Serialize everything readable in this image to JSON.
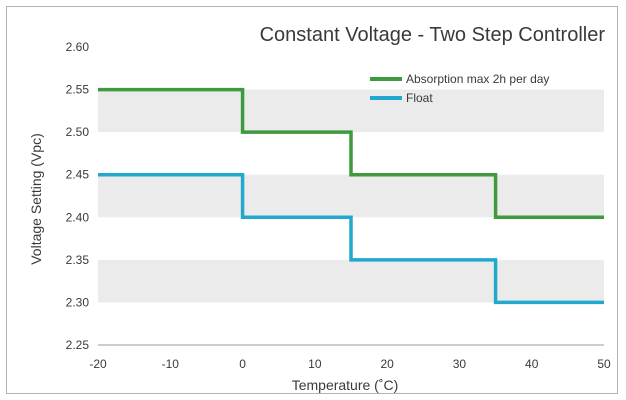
{
  "chart_data": {
    "type": "line",
    "title": "Constant Voltage - Two Step Controller",
    "xlabel": "Temperature (˚C)",
    "ylabel": "Voltage Setting (Vpc)",
    "xlim": [
      -20,
      50
    ],
    "ylim": [
      2.25,
      2.6
    ],
    "x_ticks": [
      -20,
      -10,
      0,
      10,
      20,
      30,
      40,
      50
    ],
    "y_ticks": [
      "2.25",
      "2.30",
      "2.35",
      "2.40",
      "2.45",
      "2.50",
      "2.55",
      "2.60"
    ],
    "grid": "alternating horizontal bands",
    "legend_position": "top-right",
    "series": [
      {
        "name": "Absorption max 2h per day",
        "color": "#3d9a3f",
        "points": [
          [
            -20,
            2.55
          ],
          [
            0,
            2.55
          ],
          [
            0,
            2.5
          ],
          [
            15,
            2.5
          ],
          [
            15,
            2.45
          ],
          [
            35,
            2.45
          ],
          [
            35,
            2.4
          ],
          [
            50,
            2.4
          ]
        ]
      },
      {
        "name": "Float",
        "color": "#22a8cf",
        "points": [
          [
            -20,
            2.45
          ],
          [
            0,
            2.45
          ],
          [
            0,
            2.4
          ],
          [
            15,
            2.4
          ],
          [
            15,
            2.35
          ],
          [
            35,
            2.35
          ],
          [
            35,
            2.3
          ],
          [
            50,
            2.3
          ]
        ]
      }
    ]
  },
  "colors": {
    "band": "#ebebeb",
    "text": "#3a3a3a",
    "border": "#b3b3b3"
  }
}
